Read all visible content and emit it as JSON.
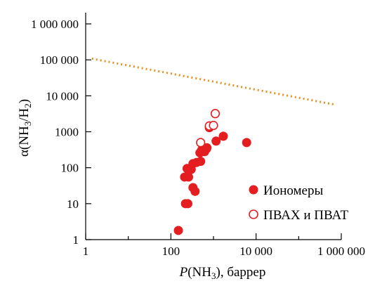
{
  "chart_data": {
    "type": "scatter",
    "x_scale": "log",
    "y_scale": "log",
    "xlim": [
      1,
      1000000
    ],
    "ylim": [
      1,
      1000000
    ],
    "x_ticks": [
      1,
      100,
      10000,
      1000000
    ],
    "x_tick_labels": [
      "1",
      "100",
      "10 000",
      "1 000 000"
    ],
    "y_ticks": [
      1,
      10,
      100,
      1000,
      10000,
      100000,
      1000000
    ],
    "y_tick_labels": [
      "1",
      "10",
      "100",
      "1000",
      "10 000",
      "100 000",
      "1 000 000"
    ],
    "xlabel": {
      "prefix": "P",
      "main": "(NH",
      "sub": "3",
      "suffix": "), баррер"
    },
    "ylabel": {
      "prefix": "α(NH",
      "sub1": "3",
      "mid": "/H",
      "sub2": "2",
      "suffix": ")"
    },
    "grid": false,
    "legend_position": "right",
    "colors": {
      "series": "#e41e20",
      "line": "#e5901e",
      "axis": "#000000"
    },
    "series": [
      {
        "name": "Иономеры",
        "marker": "filled-circle",
        "points": [
          [
            150,
            1.8
          ],
          [
            220,
            10
          ],
          [
            250,
            10
          ],
          [
            210,
            55
          ],
          [
            260,
            55
          ],
          [
            240,
            95
          ],
          [
            300,
            90
          ],
          [
            330,
            28
          ],
          [
            370,
            22
          ],
          [
            330,
            130
          ],
          [
            400,
            140
          ],
          [
            500,
            150
          ],
          [
            480,
            260
          ],
          [
            530,
            310
          ],
          [
            620,
            280
          ],
          [
            690,
            340
          ],
          [
            700,
            360
          ],
          [
            800,
            1300
          ],
          [
            1150,
            550
          ],
          [
            1700,
            750
          ],
          [
            6000,
            500
          ]
        ]
      },
      {
        "name": "ПВАХ и ПВАТ",
        "marker": "open-circle",
        "points": [
          [
            500,
            500
          ],
          [
            800,
            1450
          ],
          [
            1000,
            1500
          ],
          [
            1100,
            3200
          ]
        ]
      }
    ],
    "reference_line": {
      "style": "dotted",
      "points": [
        [
          1.4,
          108000
        ],
        [
          700000,
          5700
        ]
      ]
    }
  }
}
